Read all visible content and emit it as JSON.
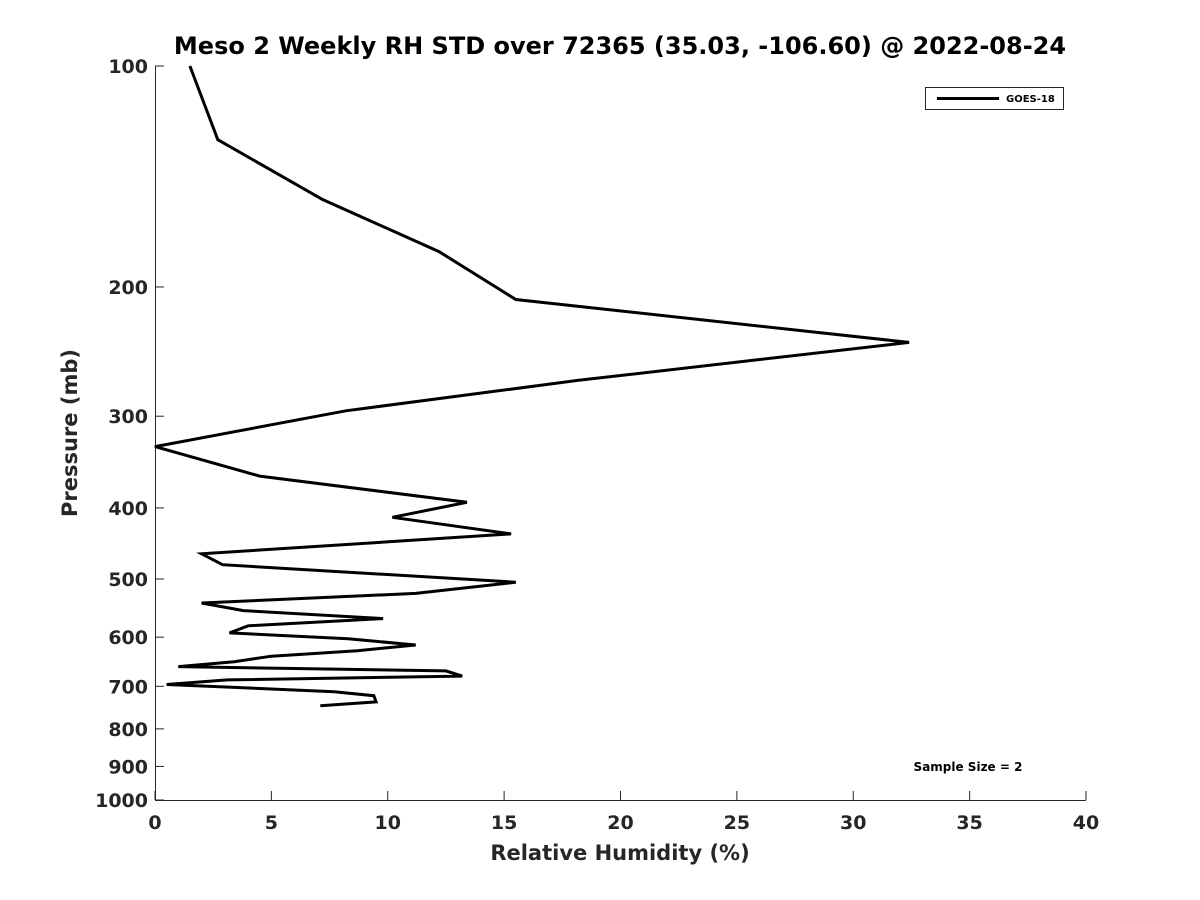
{
  "chart_data": {
    "type": "line",
    "title": "Meso 2 Weekly RH STD over 72365 (35.03, -106.60) @ 2022-08-24",
    "xlabel": "Relative Humidity (%)",
    "ylabel": "Pressure (mb)",
    "xlim": [
      0,
      40
    ],
    "ylim": [
      100,
      1000
    ],
    "y_scale": "log",
    "y_reversed": true,
    "x_ticks": [
      "0",
      "5",
      "10",
      "15",
      "20",
      "25",
      "30",
      "35",
      "40"
    ],
    "y_ticks": [
      "100",
      "200",
      "300",
      "400",
      "500",
      "600",
      "700",
      "800",
      "900",
      "1000"
    ],
    "grid": false,
    "legend_position": "top-right",
    "series": [
      {
        "name": "GOES-18",
        "color": "#000000",
        "points": [
          [
            1.5,
            100
          ],
          [
            2.7,
            126
          ],
          [
            7.2,
            152
          ],
          [
            12.2,
            179
          ],
          [
            15.5,
            208
          ],
          [
            32.4,
            238
          ],
          [
            18.2,
            268
          ],
          [
            8.2,
            295
          ],
          [
            0,
            330
          ],
          [
            4.5,
            362
          ],
          [
            13.4,
            393
          ],
          [
            10.2,
            412
          ],
          [
            15.3,
            434
          ],
          [
            2.0,
            462
          ],
          [
            2.9,
            478
          ],
          [
            15.5,
            505
          ],
          [
            11.2,
            523
          ],
          [
            2.0,
            539
          ],
          [
            3.8,
            552
          ],
          [
            9.8,
            566
          ],
          [
            4.0,
            579
          ],
          [
            3.2,
            592
          ],
          [
            8.3,
            603
          ],
          [
            11.2,
            615
          ],
          [
            8.7,
            626
          ],
          [
            5.0,
            637
          ],
          [
            3.4,
            648
          ],
          [
            1.0,
            658
          ],
          [
            12.5,
            667
          ],
          [
            13.2,
            678
          ],
          [
            3.1,
            686
          ],
          [
            0.5,
            696
          ],
          [
            7.7,
            712
          ],
          [
            9.4,
            721
          ],
          [
            9.5,
            735
          ],
          [
            7.1,
            744
          ]
        ]
      }
    ],
    "annotation": "Sample Size = 2"
  }
}
